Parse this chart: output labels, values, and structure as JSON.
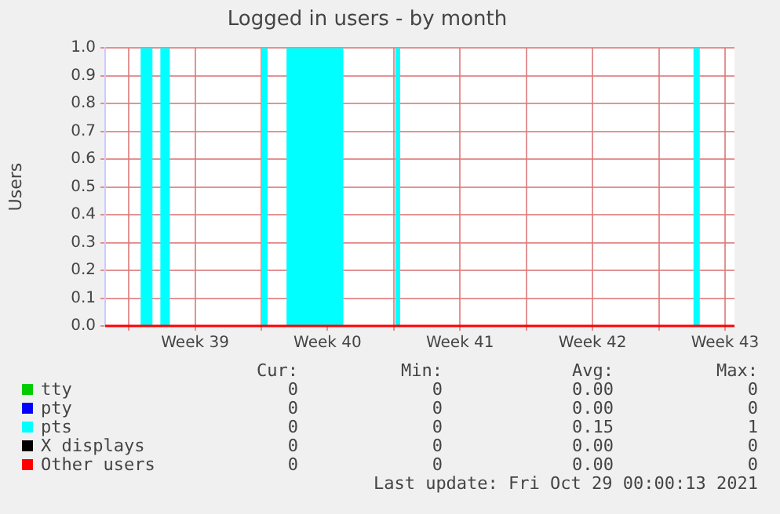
{
  "chart_data": {
    "type": "area",
    "title": "Logged in users - by month",
    "ylabel": "Users",
    "xlim": [
      "2021-09-25T18:00",
      "2021-10-29T00:00"
    ],
    "xticks": [
      {
        "value": "2021-09-27T00:00",
        "label": null
      },
      {
        "value": "2021-09-30T12:00",
        "label": "Week 39"
      },
      {
        "value": "2021-10-04T00:00",
        "label": null
      },
      {
        "value": "2021-10-07T12:00",
        "label": "Week 40"
      },
      {
        "value": "2021-10-11T00:00",
        "label": null
      },
      {
        "value": "2021-10-14T12:00",
        "label": "Week 41"
      },
      {
        "value": "2021-10-18T00:00",
        "label": null
      },
      {
        "value": "2021-10-21T12:00",
        "label": "Week 42"
      },
      {
        "value": "2021-10-25T00:00",
        "label": null
      },
      {
        "value": "2021-10-28T12:00",
        "label": "Week 43"
      }
    ],
    "ylim": [
      0,
      1
    ],
    "yticks": [
      {
        "value": 0,
        "label": "0.0"
      },
      0.1,
      0.2,
      0.3,
      0.4,
      0.5,
      0.6,
      0.7,
      0.8,
      0.9,
      {
        "value": 1,
        "label": "1.0"
      }
    ],
    "grid": true,
    "legend": "bottom",
    "series": [
      {
        "name": "tty",
        "color": "#00cc00",
        "type": "line"
      },
      {
        "name": "pty",
        "color": "#0000ff",
        "type": "line"
      },
      {
        "name": "pts",
        "color": "#00ffff",
        "x": [
          "2021-09-25T18:00",
          "2021-09-27T15:00",
          "2021-09-27T15:00",
          "2021-09-28T06:00",
          "2021-09-28T06:00",
          "2021-09-28T16:00",
          "2021-09-28T16:00",
          "2021-09-29T04:00",
          "2021-09-29T04:00",
          "2021-10-04T00:00",
          "2021-10-04T00:00",
          "2021-10-04T08:00",
          "2021-10-04T08:00",
          "2021-10-05T08:00",
          "2021-10-05T08:00",
          "2021-10-08T08:00",
          "2021-10-08T08:00",
          "2021-10-11T02:00",
          "2021-10-11T02:00",
          "2021-10-11T08:00",
          "2021-10-11T08:00",
          "2021-10-26T20:00",
          "2021-10-26T20:00",
          "2021-10-27T04:00",
          "2021-10-27T04:00",
          "2021-10-29T00:00"
        ],
        "values": [
          0,
          0,
          1,
          1,
          0,
          0,
          1,
          1,
          0,
          0,
          1,
          1,
          0,
          0,
          1,
          1,
          0,
          0,
          1,
          1,
          0,
          0,
          1,
          1,
          0,
          0
        ]
      },
      {
        "name": "X displays",
        "color": "#000000",
        "type": "line"
      },
      {
        "name": "Other users",
        "color": "#ff0000",
        "type": "line",
        "x": [
          "2021-09-25T18:00",
          "2021-10-29T00:00"
        ],
        "values": [
          0,
          0
        ]
      }
    ],
    "annotations": [
      "Cur:",
      "Min:",
      "Avg:",
      "Max:",
      "0",
      "0",
      "0.00",
      "0",
      "0",
      "0",
      "0.00",
      "0",
      "0",
      "0",
      "0.15",
      "1",
      "0",
      "0",
      "0.00",
      "0",
      "0",
      "0",
      "0.00",
      "0",
      "Last update: Fri Oct 29 00:00:13 2021"
    ]
  }
}
